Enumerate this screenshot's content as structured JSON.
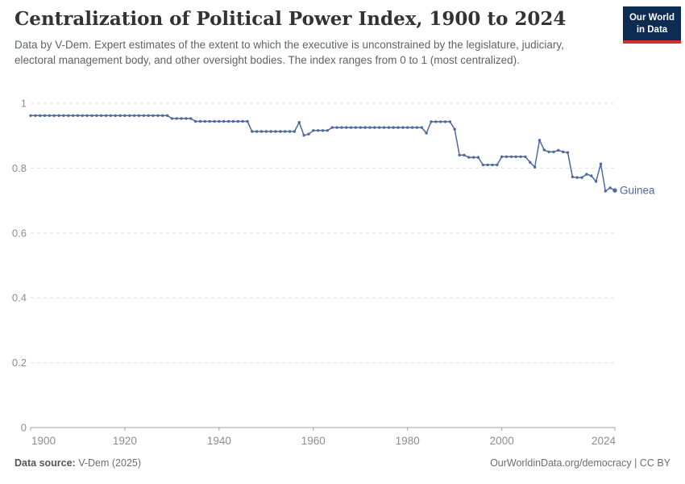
{
  "header": {
    "title": "Centralization of Political Power Index, 1900 to 2024",
    "subtitle": "Data by V-Dem. Expert estimates of the extent to which the executive is unconstrained by the legislature, judiciary, electoral management body, and other oversight bodies. The index ranges from 0 to 1 (most centralized)."
  },
  "logo": {
    "line1": "Our World",
    "line2": "in Data",
    "bg_color": "#0c2c52",
    "accent_color": "#d62e2e"
  },
  "chart_data": {
    "type": "line",
    "title": "Centralization of Political Power Index, 1900 to 2024",
    "xlabel": "",
    "ylabel": "",
    "xlim": [
      1900,
      2024
    ],
    "ylim": [
      0,
      1
    ],
    "x_ticks": [
      1900,
      1920,
      1940,
      1960,
      1980,
      2000,
      2024
    ],
    "x_tick_labels": [
      "1900",
      "1920",
      "1940",
      "1960",
      "1980",
      "2000",
      "2024"
    ],
    "y_ticks": [
      0,
      0.2,
      0.4,
      0.6,
      0.8,
      1
    ],
    "y_tick_labels": [
      "0",
      "0.2",
      "0.4",
      "0.6",
      "0.8",
      "1"
    ],
    "grid": "horizontal-dashed",
    "legend": "end-of-line-label",
    "line_color": "#4c6a9c",
    "series": [
      {
        "name": "Guinea",
        "color": "#4c6a9c",
        "points": [
          [
            1900,
            0.962
          ],
          [
            1901,
            0.962
          ],
          [
            1902,
            0.962
          ],
          [
            1903,
            0.962
          ],
          [
            1904,
            0.962
          ],
          [
            1905,
            0.962
          ],
          [
            1906,
            0.962
          ],
          [
            1907,
            0.962
          ],
          [
            1908,
            0.962
          ],
          [
            1909,
            0.962
          ],
          [
            1910,
            0.962
          ],
          [
            1911,
            0.962
          ],
          [
            1912,
            0.962
          ],
          [
            1913,
            0.962
          ],
          [
            1914,
            0.962
          ],
          [
            1915,
            0.962
          ],
          [
            1916,
            0.962
          ],
          [
            1917,
            0.962
          ],
          [
            1918,
            0.962
          ],
          [
            1919,
            0.962
          ],
          [
            1920,
            0.962
          ],
          [
            1921,
            0.962
          ],
          [
            1922,
            0.962
          ],
          [
            1923,
            0.962
          ],
          [
            1924,
            0.962
          ],
          [
            1925,
            0.962
          ],
          [
            1926,
            0.962
          ],
          [
            1927,
            0.962
          ],
          [
            1928,
            0.962
          ],
          [
            1929,
            0.962
          ],
          [
            1930,
            0.953
          ],
          [
            1931,
            0.953
          ],
          [
            1932,
            0.953
          ],
          [
            1933,
            0.953
          ],
          [
            1934,
            0.953
          ],
          [
            1935,
            0.944
          ],
          [
            1936,
            0.944
          ],
          [
            1937,
            0.944
          ],
          [
            1938,
            0.944
          ],
          [
            1939,
            0.944
          ],
          [
            1940,
            0.944
          ],
          [
            1941,
            0.944
          ],
          [
            1942,
            0.944
          ],
          [
            1943,
            0.944
          ],
          [
            1944,
            0.944
          ],
          [
            1945,
            0.944
          ],
          [
            1946,
            0.944
          ],
          [
            1947,
            0.913
          ],
          [
            1948,
            0.913
          ],
          [
            1949,
            0.913
          ],
          [
            1950,
            0.913
          ],
          [
            1951,
            0.913
          ],
          [
            1952,
            0.913
          ],
          [
            1953,
            0.913
          ],
          [
            1954,
            0.913
          ],
          [
            1955,
            0.913
          ],
          [
            1956,
            0.913
          ],
          [
            1957,
            0.941
          ],
          [
            1958,
            0.901
          ],
          [
            1959,
            0.905
          ],
          [
            1960,
            0.916
          ],
          [
            1961,
            0.916
          ],
          [
            1962,
            0.916
          ],
          [
            1963,
            0.916
          ],
          [
            1964,
            0.925
          ],
          [
            1965,
            0.925
          ],
          [
            1966,
            0.925
          ],
          [
            1967,
            0.925
          ],
          [
            1968,
            0.925
          ],
          [
            1969,
            0.925
          ],
          [
            1970,
            0.925
          ],
          [
            1971,
            0.925
          ],
          [
            1972,
            0.925
          ],
          [
            1973,
            0.925
          ],
          [
            1974,
            0.925
          ],
          [
            1975,
            0.925
          ],
          [
            1976,
            0.925
          ],
          [
            1977,
            0.925
          ],
          [
            1978,
            0.925
          ],
          [
            1979,
            0.925
          ],
          [
            1980,
            0.925
          ],
          [
            1981,
            0.925
          ],
          [
            1982,
            0.925
          ],
          [
            1983,
            0.925
          ],
          [
            1984,
            0.908
          ],
          [
            1985,
            0.943
          ],
          [
            1986,
            0.943
          ],
          [
            1987,
            0.943
          ],
          [
            1988,
            0.943
          ],
          [
            1989,
            0.943
          ],
          [
            1990,
            0.92
          ],
          [
            1991,
            0.84
          ],
          [
            1992,
            0.84
          ],
          [
            1993,
            0.833
          ],
          [
            1994,
            0.833
          ],
          [
            1995,
            0.833
          ],
          [
            1996,
            0.81
          ],
          [
            1997,
            0.81
          ],
          [
            1998,
            0.81
          ],
          [
            1999,
            0.81
          ],
          [
            2000,
            0.835
          ],
          [
            2001,
            0.835
          ],
          [
            2002,
            0.835
          ],
          [
            2003,
            0.835
          ],
          [
            2004,
            0.835
          ],
          [
            2005,
            0.835
          ],
          [
            2006,
            0.818
          ],
          [
            2007,
            0.803
          ],
          [
            2008,
            0.886
          ],
          [
            2009,
            0.856
          ],
          [
            2010,
            0.85
          ],
          [
            2011,
            0.85
          ],
          [
            2012,
            0.855
          ],
          [
            2013,
            0.85
          ],
          [
            2014,
            0.848
          ],
          [
            2015,
            0.773
          ],
          [
            2016,
            0.771
          ],
          [
            2017,
            0.771
          ],
          [
            2018,
            0.781
          ],
          [
            2019,
            0.776
          ],
          [
            2020,
            0.759
          ],
          [
            2021,
            0.813
          ],
          [
            2022,
            0.729
          ],
          [
            2023,
            0.739
          ],
          [
            2024,
            0.731
          ]
        ]
      }
    ]
  },
  "footer": {
    "source_label": "Data source:",
    "source_value": "V-Dem (2025)",
    "credit": "OurWorldinData.org/democracy | CC BY"
  }
}
